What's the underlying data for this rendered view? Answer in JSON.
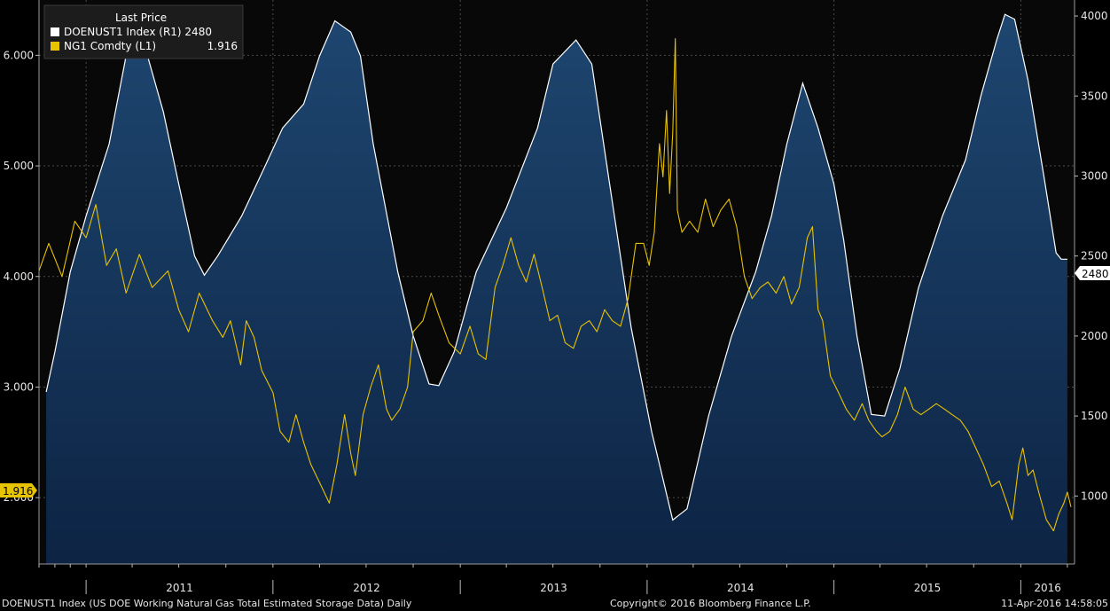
{
  "chart_data": {
    "type": "area",
    "legend": {
      "title": "Last Price",
      "entries": [
        {
          "label": "DOENUST1 Index  (R1) 2480",
          "color": "#ffffff"
        },
        {
          "label": "NG1 Comdty  (L1)",
          "value": "1.916",
          "color": "#e8c300"
        }
      ]
    },
    "x_ticks": [
      "2011",
      "2012",
      "2013",
      "2014",
      "2015",
      "2016"
    ],
    "x_range": [
      "2010-10",
      "2016-04"
    ],
    "left_axis": {
      "ticks": [
        "2.000",
        "3.000",
        "4.000",
        "5.000",
        "6.000"
      ],
      "range": [
        1.4,
        6.5
      ]
    },
    "right_axis": {
      "ticks": [
        "1000",
        "1500",
        "2000",
        "2500",
        "3000",
        "3500",
        "4000"
      ],
      "range": [
        575,
        4100
      ]
    },
    "last_values": {
      "left_badge": "1.916",
      "right_badge": "2480"
    },
    "series": [
      {
        "name": "DOENUST1 Index",
        "axis": "right",
        "style": "area",
        "line_color": "#ffffff",
        "fill_color": "#14304f",
        "points": [
          [
            "2010-10-15",
            1650
          ],
          [
            "2010-11-01",
            1900
          ],
          [
            "2010-12-01",
            2400
          ],
          [
            "2011-01-01",
            2750
          ],
          [
            "2011-02-15",
            3200
          ],
          [
            "2011-03-20",
            3750
          ],
          [
            "2011-04-15",
            3830
          ],
          [
            "2011-05-01",
            3750
          ],
          [
            "2011-06-01",
            3400
          ],
          [
            "2011-07-01",
            2950
          ],
          [
            "2011-08-01",
            2500
          ],
          [
            "2011-08-20",
            2380
          ],
          [
            "2011-09-15",
            2500
          ],
          [
            "2011-11-01",
            2750
          ],
          [
            "2011-12-15",
            3050
          ],
          [
            "2012-01-20",
            3300
          ],
          [
            "2012-03-01",
            3450
          ],
          [
            "2012-04-01",
            3750
          ],
          [
            "2012-05-01",
            3970
          ],
          [
            "2012-06-01",
            3900
          ],
          [
            "2012-06-20",
            3750
          ],
          [
            "2012-07-15",
            3200
          ],
          [
            "2012-09-01",
            2400
          ],
          [
            "2012-10-01",
            2000
          ],
          [
            "2012-11-01",
            1700
          ],
          [
            "2012-11-20",
            1690
          ],
          [
            "2012-12-20",
            1900
          ],
          [
            "2013-02-01",
            2400
          ],
          [
            "2013-04-01",
            2800
          ],
          [
            "2013-06-01",
            3300
          ],
          [
            "2013-07-01",
            3700
          ],
          [
            "2013-08-15",
            3850
          ],
          [
            "2013-09-15",
            3700
          ],
          [
            "2013-10-15",
            3050
          ],
          [
            "2013-12-01",
            2050
          ],
          [
            "2014-01-10",
            1400
          ],
          [
            "2014-02-20",
            850
          ],
          [
            "2014-03-20",
            920
          ],
          [
            "2014-05-01",
            1500
          ],
          [
            "2014-06-15",
            2000
          ],
          [
            "2014-08-01",
            2400
          ],
          [
            "2014-09-01",
            2750
          ],
          [
            "2014-10-01",
            3200
          ],
          [
            "2014-11-01",
            3580
          ],
          [
            "2014-12-01",
            3300
          ],
          [
            "2015-01-01",
            2950
          ],
          [
            "2015-01-20",
            2600
          ],
          [
            "2015-02-15",
            2000
          ],
          [
            "2015-03-15",
            1510
          ],
          [
            "2015-04-10",
            1500
          ],
          [
            "2015-05-10",
            1800
          ],
          [
            "2015-06-15",
            2300
          ],
          [
            "2015-08-01",
            2750
          ],
          [
            "2015-09-15",
            3100
          ],
          [
            "2015-10-15",
            3500
          ],
          [
            "2015-11-15",
            3850
          ],
          [
            "2015-12-01",
            4010
          ],
          [
            "2015-12-20",
            3980
          ],
          [
            "2016-01-15",
            3600
          ],
          [
            "2016-02-15",
            3000
          ],
          [
            "2016-03-10",
            2520
          ],
          [
            "2016-03-20",
            2480
          ],
          [
            "2016-04-01",
            2480
          ]
        ]
      },
      {
        "name": "NG1 Comdty",
        "axis": "left",
        "style": "line",
        "line_color": "#e8c300",
        "points": [
          [
            "2010-10-01",
            4.05
          ],
          [
            "2010-10-20",
            4.3
          ],
          [
            "2010-11-15",
            4.0
          ],
          [
            "2010-12-10",
            4.5
          ],
          [
            "2011-01-01",
            4.35
          ],
          [
            "2011-01-20",
            4.65
          ],
          [
            "2011-02-10",
            4.1
          ],
          [
            "2011-03-01",
            4.25
          ],
          [
            "2011-03-20",
            3.85
          ],
          [
            "2011-04-15",
            4.2
          ],
          [
            "2011-05-10",
            3.9
          ],
          [
            "2011-06-10",
            4.05
          ],
          [
            "2011-07-01",
            3.7
          ],
          [
            "2011-07-20",
            3.5
          ],
          [
            "2011-08-10",
            3.85
          ],
          [
            "2011-09-05",
            3.6
          ],
          [
            "2011-09-25",
            3.45
          ],
          [
            "2011-10-10",
            3.6
          ],
          [
            "2011-10-30",
            3.2
          ],
          [
            "2011-11-10",
            3.6
          ],
          [
            "2011-11-25",
            3.45
          ],
          [
            "2011-12-10",
            3.15
          ],
          [
            "2012-01-01",
            2.95
          ],
          [
            "2012-01-15",
            2.6
          ],
          [
            "2012-02-01",
            2.5
          ],
          [
            "2012-02-15",
            2.75
          ],
          [
            "2012-03-01",
            2.5
          ],
          [
            "2012-03-15",
            2.3
          ],
          [
            "2012-04-10",
            2.05
          ],
          [
            "2012-04-20",
            1.95
          ],
          [
            "2012-05-05",
            2.3
          ],
          [
            "2012-05-20",
            2.75
          ],
          [
            "2012-06-01",
            2.4
          ],
          [
            "2012-06-10",
            2.2
          ],
          [
            "2012-06-25",
            2.75
          ],
          [
            "2012-07-10",
            3.0
          ],
          [
            "2012-07-25",
            3.2
          ],
          [
            "2012-08-10",
            2.8
          ],
          [
            "2012-08-20",
            2.7
          ],
          [
            "2012-09-05",
            2.8
          ],
          [
            "2012-09-20",
            3.0
          ],
          [
            "2012-10-01",
            3.5
          ],
          [
            "2012-10-20",
            3.6
          ],
          [
            "2012-11-05",
            3.85
          ],
          [
            "2012-11-20",
            3.65
          ],
          [
            "2012-12-10",
            3.4
          ],
          [
            "2013-01-01",
            3.3
          ],
          [
            "2013-01-20",
            3.55
          ],
          [
            "2013-02-05",
            3.3
          ],
          [
            "2013-02-20",
            3.25
          ],
          [
            "2013-03-10",
            3.9
          ],
          [
            "2013-03-25",
            4.1
          ],
          [
            "2013-04-10",
            4.35
          ],
          [
            "2013-04-25",
            4.1
          ],
          [
            "2013-05-10",
            3.95
          ],
          [
            "2013-05-25",
            4.2
          ],
          [
            "2013-06-10",
            3.9
          ],
          [
            "2013-06-25",
            3.6
          ],
          [
            "2013-07-10",
            3.65
          ],
          [
            "2013-07-25",
            3.4
          ],
          [
            "2013-08-10",
            3.35
          ],
          [
            "2013-08-25",
            3.55
          ],
          [
            "2013-09-10",
            3.6
          ],
          [
            "2013-09-25",
            3.5
          ],
          [
            "2013-10-10",
            3.7
          ],
          [
            "2013-10-25",
            3.6
          ],
          [
            "2013-11-10",
            3.55
          ],
          [
            "2013-11-25",
            3.8
          ],
          [
            "2013-12-10",
            4.3
          ],
          [
            "2013-12-25",
            4.3
          ],
          [
            "2014-01-05",
            4.1
          ],
          [
            "2014-01-15",
            4.4
          ],
          [
            "2014-01-25",
            5.2
          ],
          [
            "2014-02-01",
            4.9
          ],
          [
            "2014-02-08",
            5.5
          ],
          [
            "2014-02-14",
            4.75
          ],
          [
            "2014-02-20",
            5.3
          ],
          [
            "2014-02-25",
            6.15
          ],
          [
            "2014-03-01",
            4.6
          ],
          [
            "2014-03-10",
            4.4
          ],
          [
            "2014-03-25",
            4.5
          ],
          [
            "2014-04-10",
            4.4
          ],
          [
            "2014-04-25",
            4.7
          ],
          [
            "2014-05-10",
            4.45
          ],
          [
            "2014-05-25",
            4.6
          ],
          [
            "2014-06-10",
            4.7
          ],
          [
            "2014-06-25",
            4.45
          ],
          [
            "2014-07-10",
            4.0
          ],
          [
            "2014-07-25",
            3.8
          ],
          [
            "2014-08-10",
            3.9
          ],
          [
            "2014-08-25",
            3.95
          ],
          [
            "2014-09-10",
            3.85
          ],
          [
            "2014-09-25",
            4.0
          ],
          [
            "2014-10-10",
            3.75
          ],
          [
            "2014-10-25",
            3.9
          ],
          [
            "2014-11-10",
            4.35
          ],
          [
            "2014-11-20",
            4.45
          ],
          [
            "2014-12-01",
            3.7
          ],
          [
            "2014-12-10",
            3.6
          ],
          [
            "2014-12-25",
            3.1
          ],
          [
            "2015-01-10",
            2.95
          ],
          [
            "2015-01-25",
            2.8
          ],
          [
            "2015-02-10",
            2.7
          ],
          [
            "2015-02-25",
            2.85
          ],
          [
            "2015-03-10",
            2.7
          ],
          [
            "2015-03-25",
            2.6
          ],
          [
            "2015-04-05",
            2.55
          ],
          [
            "2015-04-20",
            2.6
          ],
          [
            "2015-05-05",
            2.75
          ],
          [
            "2015-05-20",
            3.0
          ],
          [
            "2015-06-05",
            2.8
          ],
          [
            "2015-06-20",
            2.75
          ],
          [
            "2015-07-05",
            2.8
          ],
          [
            "2015-07-20",
            2.85
          ],
          [
            "2015-08-05",
            2.8
          ],
          [
            "2015-08-20",
            2.75
          ],
          [
            "2015-09-05",
            2.7
          ],
          [
            "2015-09-20",
            2.6
          ],
          [
            "2015-10-05",
            2.45
          ],
          [
            "2015-10-20",
            2.3
          ],
          [
            "2015-11-05",
            2.1
          ],
          [
            "2015-11-20",
            2.15
          ],
          [
            "2015-12-05",
            1.95
          ],
          [
            "2015-12-15",
            1.8
          ],
          [
            "2015-12-28",
            2.3
          ],
          [
            "2016-01-05",
            2.45
          ],
          [
            "2016-01-15",
            2.2
          ],
          [
            "2016-01-25",
            2.25
          ],
          [
            "2016-02-05",
            2.05
          ],
          [
            "2016-02-20",
            1.8
          ],
          [
            "2016-03-05",
            1.7
          ],
          [
            "2016-03-15",
            1.85
          ],
          [
            "2016-03-25",
            1.95
          ],
          [
            "2016-04-01",
            2.05
          ],
          [
            "2016-04-08",
            1.916
          ]
        ]
      }
    ]
  },
  "footer": {
    "description": "DOENUST1 Index (US DOE Working Natural Gas Total Estimated Storage Data)  Daily",
    "copyright": "Copyright© 2016 Bloomberg Finance L.P.",
    "timestamp": "11-Apr-2016 14:58:05"
  }
}
